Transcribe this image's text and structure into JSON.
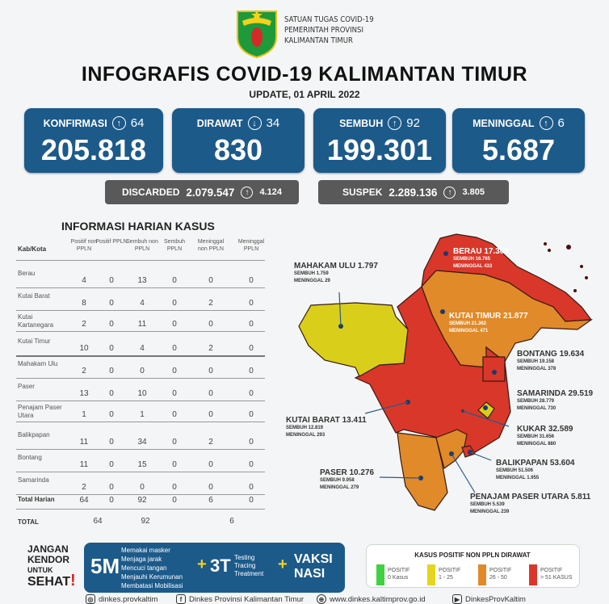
{
  "header": {
    "org_lines": [
      "SATUAN TUGAS COVID-19",
      "PEMERINTAH PROVINSI",
      "KALIMANTAN TIMUR"
    ],
    "title": "INFOGRAFIS COVID-19 KALIMANTAN TIMUR",
    "update": "UPDATE, 01 APRIL 2022"
  },
  "cards": [
    {
      "label": "KONFIRMASI",
      "arrow": "↑",
      "delta": "64",
      "value": "205.818"
    },
    {
      "label": "DIRAWAT",
      "arrow": "↓",
      "delta": "34",
      "value": "830"
    },
    {
      "label": "SEMBUH",
      "arrow": "↑",
      "delta": "92",
      "value": "199.301"
    },
    {
      "label": "MENINGGAL",
      "arrow": "↑",
      "delta": "6",
      "value": "5.687"
    }
  ],
  "secondary": [
    {
      "label": "DISCARDED",
      "value": "2.079.547",
      "arrow": "↑",
      "delta": "4.124"
    },
    {
      "label": "SUSPEK",
      "value": "2.289.136",
      "arrow": "↑",
      "delta": "3.805"
    }
  ],
  "table": {
    "title": "INFORMASI HARIAN KASUS",
    "headers": [
      "Kab/Kota",
      "Positif non PPLN",
      "Positif PPLN",
      "Sembuh non PPLN",
      "Sembuh PPLN",
      "Meninggal non PPLN",
      "Meninggal PPLN"
    ],
    "rows": [
      {
        "name": "Berau",
        "v": [
          "4",
          "0",
          "13",
          "0",
          "0",
          "0"
        ]
      },
      {
        "name": "Kutai Barat",
        "v": [
          "8",
          "0",
          "4",
          "0",
          "2",
          "0"
        ]
      },
      {
        "name": "Kutai Kartanegara",
        "v": [
          "2",
          "0",
          "11",
          "0",
          "0",
          "0"
        ]
      },
      {
        "name": "Kutai Timur",
        "v": [
          "10",
          "0",
          "4",
          "0",
          "2",
          "0"
        ]
      },
      {
        "name": "Mahakam Ulu",
        "v": [
          "2",
          "0",
          "0",
          "0",
          "0",
          "0"
        ]
      },
      {
        "name": "Paser",
        "v": [
          "13",
          "0",
          "10",
          "0",
          "0",
          "0"
        ]
      },
      {
        "name": "Penajam Paser Utara",
        "v": [
          "1",
          "0",
          "1",
          "0",
          "0",
          "0"
        ]
      },
      {
        "name": "Balikpapan",
        "v": [
          "11",
          "0",
          "34",
          "0",
          "2",
          "0"
        ]
      },
      {
        "name": "Bontang",
        "v": [
          "11",
          "0",
          "15",
          "0",
          "0",
          "0"
        ]
      },
      {
        "name": "Samarinda",
        "v": [
          "2",
          "0",
          "0",
          "0",
          "0",
          "0"
        ]
      },
      {
        "name": "Total Harian",
        "v": [
          "64",
          "0",
          "92",
          "0",
          "6",
          "0"
        ]
      }
    ],
    "total": {
      "label": "TOTAL",
      "positif": "64",
      "sembuh": "92",
      "meninggal": "6"
    }
  },
  "map": [
    {
      "name": "BERAU",
      "total": "17.300",
      "sembuh": "SEMBUH 16.765",
      "meninggal": "MENINGGAL 433",
      "color": "#d9372a"
    },
    {
      "name": "MAHAKAM ULU",
      "total": "1.797",
      "sembuh": "SEMBUH 1.759",
      "meninggal": "MENINGGAL 29",
      "color": "#d9cf1a"
    },
    {
      "name": "KUTAI TIMUR",
      "total": "21.877",
      "sembuh": "SEMBUH 21.362",
      "meninggal": "MENINGGAL 471",
      "color": "#e08a2a"
    },
    {
      "name": "BONTANG",
      "total": "19.634",
      "sembuh": "SEMBUH 19.158",
      "meninggal": "MENINGGAL 378",
      "color": "#d9372a"
    },
    {
      "name": "SAMARINDA",
      "total": "29.519",
      "sembuh": "SEMBUH 28.779",
      "meninggal": "MENINGGAL 730",
      "color": "#d9cf1a"
    },
    {
      "name": "KUTAI BARAT",
      "total": "13.411",
      "sembuh": "SEMBUH 12.819",
      "meninggal": "MENINGGAL 293",
      "color": "#d9372a"
    },
    {
      "name": "KUKAR",
      "total": "32.589",
      "sembuh": "SEMBUH 31.656",
      "meninggal": "MENINGGAL 880",
      "color": "#d9372a"
    },
    {
      "name": "BALIKPAPAN",
      "total": "53.604",
      "sembuh": "SEMBUH 51.506",
      "meninggal": "MENINGGAL 1.955",
      "color": "#d9372a"
    },
    {
      "name": "PASER",
      "total": "10.276",
      "sembuh": "SEMBUH 9.958",
      "meninggal": "MENINGGAL 279",
      "color": "#e08a2a"
    },
    {
      "name": "PENAJAM PASER UTARA",
      "total": "5.811",
      "sembuh": "SEMBUH 5.539",
      "meninggal": "MENINGGAL 239",
      "color": "#e08a2a"
    }
  ],
  "campaign": {
    "jangan": "JANGAN",
    "kendor": "KENDOR",
    "untuk": "UNTUK",
    "sehat": "SEHAT",
    "excl": "!",
    "fivem": "5M",
    "fivem_items": [
      "Memakai masker",
      "Menjaga jarak",
      "Mencuci tangan",
      "Menjauhi Kerumunan",
      "Membatasi Mobilisasi"
    ],
    "plus": "+",
    "threet": "3T",
    "threet_items": [
      "Testing",
      "Tracing",
      "Treatment"
    ],
    "vaksi": "VAKSI",
    "nasi": "NASI"
  },
  "legend": {
    "title": "KASUS POSITIF NON PPLN DIRAWAT",
    "items": [
      {
        "l1": "POSITIF",
        "l2": "0 Kasus",
        "color": "#3fd13f"
      },
      {
        "l1": "POSITIF",
        "l2": "1 - 25",
        "color": "#e3d61c"
      },
      {
        "l1": "POSITIF",
        "l2": "26 - 50",
        "color": "#e08a2a"
      },
      {
        "l1": "POSITIF",
        "l2": "> 51 KASUS",
        "color": "#d9372a"
      }
    ]
  },
  "footer": {
    "instagram": "dinkes.provkaltim",
    "facebook": "Dinkes Provinsi Kalimantan Timur",
    "web": "www.dinkes.kaltimprov.go.id",
    "youtube": "DinkesProvKaltim"
  }
}
